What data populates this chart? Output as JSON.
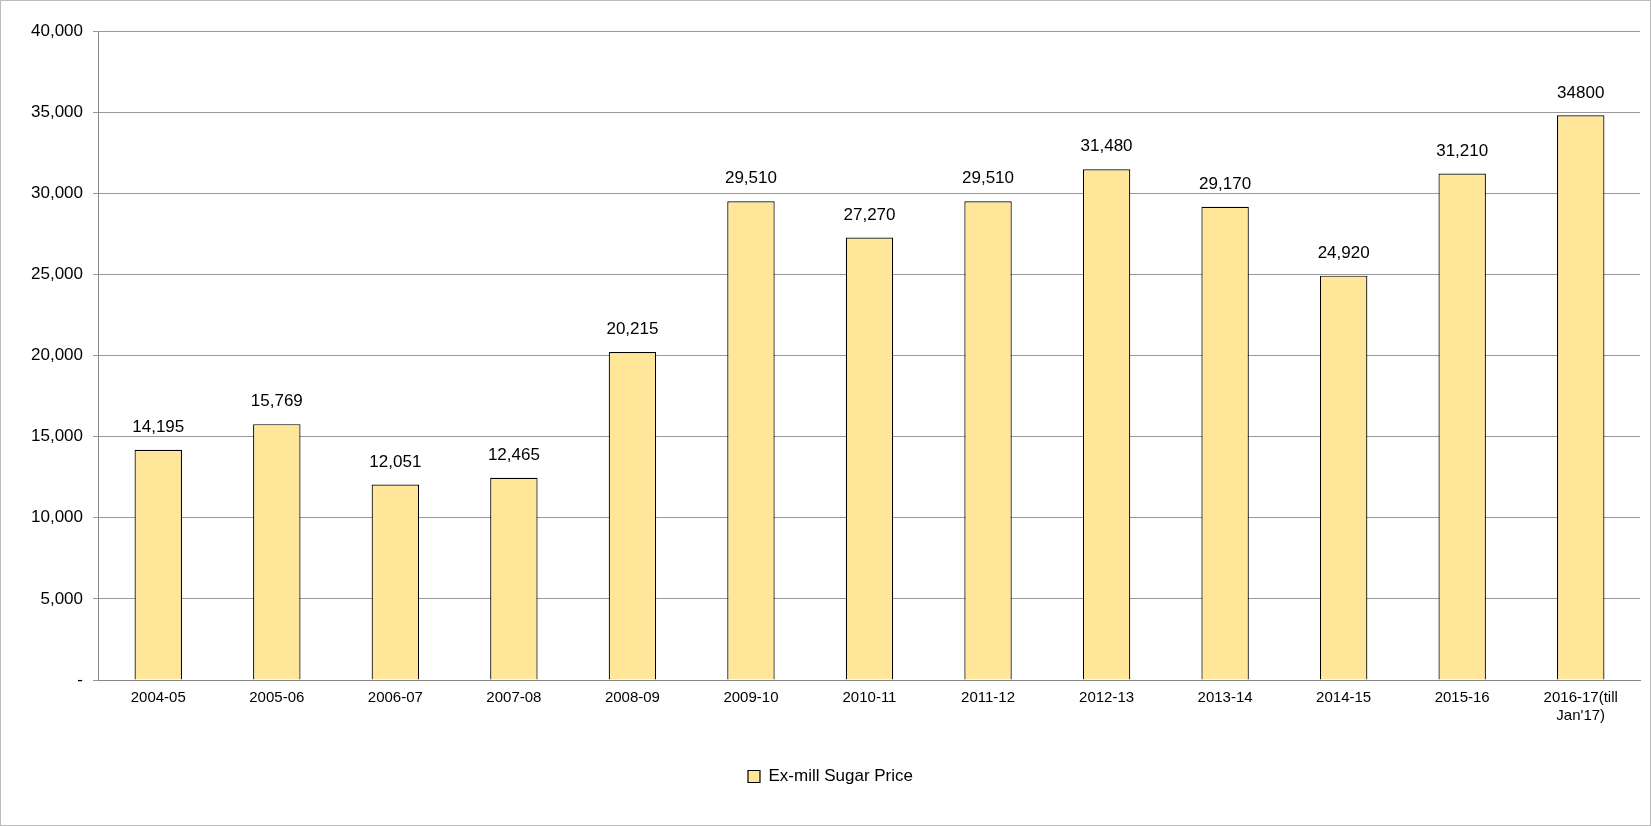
{
  "chart_data": {
    "type": "bar",
    "categories": [
      "2004-05",
      "2005-06",
      "2006-07",
      "2007-08",
      "2008-09",
      "2009-10",
      "2010-11",
      "2011-12",
      "2012-13",
      "2013-14",
      "2014-15",
      "2015-16",
      "2016-17(till Jan'17)"
    ],
    "series": [
      {
        "name": "Ex-mill Sugar Price",
        "color": "#ffe699",
        "values": [
          14195,
          15769,
          12051,
          12465,
          20215,
          29510,
          27270,
          29510,
          31480,
          29170,
          24920,
          31210,
          34800
        ],
        "value_labels": [
          "14,195",
          "15,769",
          "12,051",
          "12,465",
          "20,215",
          "29,510",
          "27,270",
          "29,510",
          "31,480",
          "29,170",
          "24,920",
          "31,210",
          "34800"
        ]
      }
    ],
    "ylim": [
      0,
      40000
    ],
    "yticks": [
      {
        "value": 0,
        "label": "-"
      },
      {
        "value": 5000,
        "label": "5,000"
      },
      {
        "value": 10000,
        "label": "10,000"
      },
      {
        "value": 15000,
        "label": "15,000"
      },
      {
        "value": 20000,
        "label": "20,000"
      },
      {
        "value": 25000,
        "label": "25,000"
      },
      {
        "value": 30000,
        "label": "30,000"
      },
      {
        "value": 35000,
        "label": "35,000"
      },
      {
        "value": 40000,
        "label": "40,000"
      }
    ],
    "grid": "y",
    "legend": "bottom"
  }
}
